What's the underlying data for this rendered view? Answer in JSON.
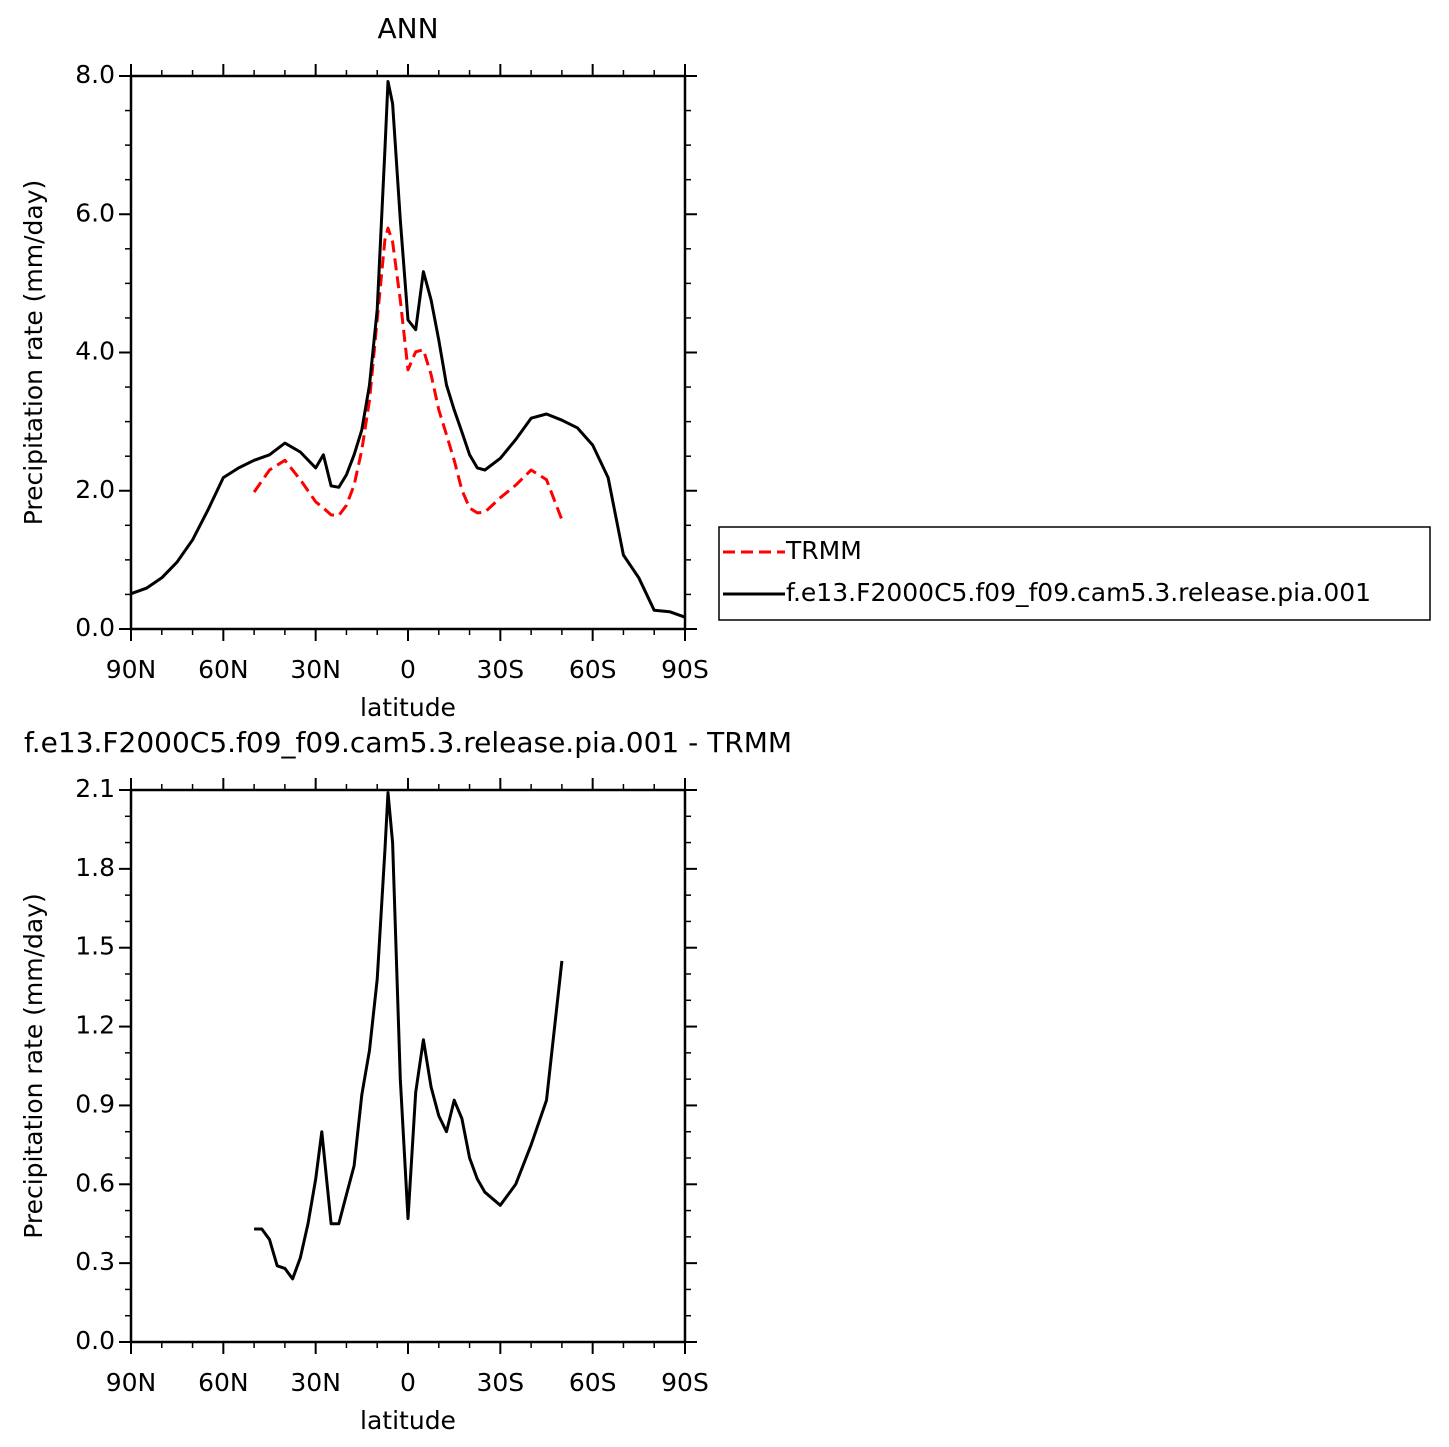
{
  "chart_data": [
    {
      "type": "line",
      "title": "ANN",
      "xlabel": "latitude",
      "ylabel": "Precipitation rate (mm/day)",
      "x": [
        90,
        85,
        80,
        75,
        70,
        65,
        60,
        55,
        50,
        45,
        40,
        35,
        30,
        27.5,
        25,
        22.5,
        20,
        17.5,
        15,
        12.5,
        10,
        7.5,
        6.5,
        5,
        2.5,
        0,
        -2.5,
        -5,
        -7.5,
        -10,
        -12.5,
        -15,
        -17.5,
        -20,
        -22.5,
        -25,
        -30,
        -35,
        -40,
        -45,
        -50,
        -55,
        -60,
        -65,
        -70,
        -75,
        -80,
        -85,
        -90
      ],
      "xlim": [
        90,
        -90
      ],
      "xticks": [
        {
          "value": 90,
          "label": "90N"
        },
        {
          "value": 60,
          "label": "60N"
        },
        {
          "value": 30,
          "label": "30N"
        },
        0,
        {
          "value": -30,
          "label": "30S"
        },
        {
          "value": -60,
          "label": "60S"
        },
        {
          "value": -90,
          "label": "90S"
        }
      ],
      "ylim": [
        0,
        8
      ],
      "yticks": [
        {
          "value": 0,
          "label": "0.0"
        },
        {
          "value": 2,
          "label": "2.0"
        },
        {
          "value": 4,
          "label": "4.0"
        },
        {
          "value": 6,
          "label": "6.0"
        },
        {
          "value": 8,
          "label": "8.0"
        }
      ],
      "legend": "right",
      "series": [
        {
          "name": "TRMM",
          "color": "#ff0000",
          "dashed": true,
          "values": [
            null,
            null,
            null,
            null,
            null,
            null,
            null,
            null,
            1.98,
            2.3,
            2.44,
            2.16,
            1.84,
            1.75,
            1.65,
            1.64,
            1.79,
            2.08,
            2.59,
            3.31,
            4.47,
            5.63,
            5.8,
            5.6,
            4.76,
            3.75,
            4.01,
            4.04,
            3.68,
            3.17,
            2.81,
            2.44,
            2.01,
            1.75,
            1.68,
            1.69,
            1.9,
            2.08,
            2.3,
            2.16,
            1.58,
            null,
            null,
            null,
            null,
            null,
            null,
            null,
            null
          ]
        },
        {
          "name": "f.e13.F2000C5.f09_f09.cam5.3.release.pia.001",
          "color": "#000000",
          "dashed": false,
          "values": [
            0.51,
            0.59,
            0.74,
            0.97,
            1.29,
            1.72,
            2.19,
            2.33,
            2.44,
            2.52,
            2.69,
            2.56,
            2.33,
            2.52,
            2.07,
            2.05,
            2.23,
            2.52,
            2.88,
            3.53,
            4.62,
            6.93,
            7.92,
            7.6,
            5.92,
            4.47,
            4.33,
            5.17,
            4.76,
            4.18,
            3.53,
            3.17,
            2.85,
            2.52,
            2.33,
            2.3,
            2.47,
            2.74,
            3.05,
            3.11,
            3.02,
            2.91,
            2.66,
            2.19,
            1.07,
            0.74,
            0.27,
            0.25,
            0.17
          ]
        }
      ]
    },
    {
      "type": "line",
      "title": "f.e13.F2000C5.f09_f09.cam5.3.release.pia.001 - TRMM",
      "xlabel": "latitude",
      "ylabel": "Precipitation rate (mm/day)",
      "x": [
        50,
        47.5,
        45,
        42.5,
        40,
        37.5,
        35,
        32.5,
        30,
        28,
        25,
        22.5,
        20,
        17.5,
        15,
        12.5,
        10,
        7.5,
        6.5,
        5,
        2.5,
        0,
        -2.5,
        -5,
        -7.5,
        -10,
        -12.5,
        -15,
        -17.5,
        -20,
        -22.5,
        -25,
        -30,
        -35,
        -40,
        -45,
        -50
      ],
      "xlim": [
        90,
        -90
      ],
      "xticks": [
        {
          "value": 90,
          "label": "90N"
        },
        {
          "value": 60,
          "label": "60N"
        },
        {
          "value": 30,
          "label": "30N"
        },
        0,
        {
          "value": -30,
          "label": "30S"
        },
        {
          "value": -60,
          "label": "60S"
        },
        {
          "value": -90,
          "label": "90S"
        }
      ],
      "ylim": [
        0,
        2.1
      ],
      "yticks": [
        {
          "value": 0,
          "label": "0.0"
        },
        0.3,
        0.6,
        0.9,
        1.2,
        1.5,
        1.8,
        2.1
      ],
      "series": [
        {
          "color": "#000000",
          "dashed": false,
          "values": [
            0.43,
            0.43,
            0.39,
            0.29,
            0.28,
            0.24,
            0.32,
            0.45,
            0.62,
            0.8,
            0.45,
            0.45,
            0.56,
            0.67,
            0.94,
            1.11,
            1.38,
            1.87,
            2.09,
            1.9,
            1.0,
            0.47,
            0.95,
            1.15,
            0.97,
            0.86,
            0.8,
            0.92,
            0.85,
            0.7,
            0.62,
            0.57,
            0.52,
            0.6,
            0.75,
            0.92,
            1.45
          ]
        }
      ]
    }
  ]
}
